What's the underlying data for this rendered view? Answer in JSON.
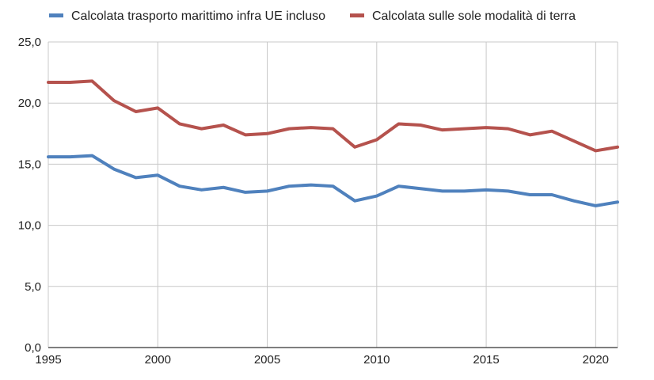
{
  "chart_data": {
    "type": "line",
    "title": "",
    "xlabel": "",
    "ylabel": "",
    "x": [
      1995,
      1996,
      1997,
      1998,
      1999,
      2000,
      2001,
      2002,
      2003,
      2004,
      2005,
      2006,
      2007,
      2008,
      2009,
      2010,
      2011,
      2012,
      2013,
      2014,
      2015,
      2016,
      2017,
      2018,
      2019,
      2020,
      2021
    ],
    "xlim": [
      1995,
      2021
    ],
    "ylim": [
      0,
      25
    ],
    "x_ticks": [
      1995,
      2000,
      2005,
      2010,
      2015,
      2020
    ],
    "x_tick_labels": [
      "1995",
      "2000",
      "2005",
      "2010",
      "2015",
      "2020"
    ],
    "y_ticks": [
      0,
      5,
      10,
      15,
      20,
      25
    ],
    "y_tick_labels": [
      "0,0",
      "5,0",
      "10,0",
      "15,0",
      "20,0",
      "25,0"
    ],
    "grid": true,
    "legend_position": "top",
    "series": [
      {
        "name": "Calcolata trasporto marittimo infra UE incluso",
        "color": "#4f81bd",
        "values": [
          15.6,
          15.6,
          15.7,
          14.6,
          13.9,
          14.1,
          13.2,
          12.9,
          13.1,
          12.7,
          12.8,
          13.2,
          13.3,
          13.2,
          12.0,
          12.4,
          13.2,
          13.0,
          12.8,
          12.8,
          12.9,
          12.8,
          12.5,
          12.5,
          12.0,
          11.6,
          11.9
        ]
      },
      {
        "name": "Calcolata sulle sole modalità di terra",
        "color": "#b5524d",
        "values": [
          21.7,
          21.7,
          21.8,
          20.2,
          19.3,
          19.6,
          18.3,
          17.9,
          18.2,
          17.4,
          17.5,
          17.9,
          18.0,
          17.9,
          16.4,
          17.0,
          18.3,
          18.2,
          17.8,
          17.9,
          18.0,
          17.9,
          17.4,
          17.7,
          16.9,
          16.1,
          16.4
        ]
      }
    ]
  }
}
